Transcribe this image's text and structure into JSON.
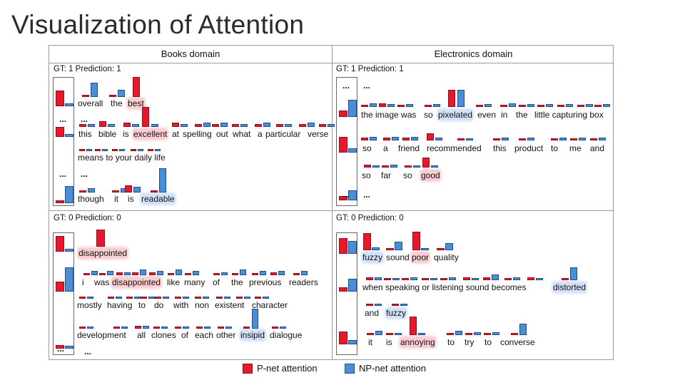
{
  "title": "Visualization of Attention",
  "panels": {
    "books_header": "Books domain",
    "electronics_header": "Electronics domain",
    "books_pos_gt": "GT: 1 Prediction: 1",
    "electronics_pos_gt": "GT: 1 Prediction: 1",
    "books_neg_gt": "GT: 0 Prediction: 0",
    "electronics_neg_gt": "GT: 0 Prediction: 0"
  },
  "ellipsis": "...",
  "words": {
    "bp": [
      "overall",
      "the",
      "best",
      "this",
      "bible",
      "is",
      "excellent",
      "at",
      "spelling",
      "out",
      "what",
      "a",
      "particular",
      "verse",
      "means to your daily life",
      "though",
      "it",
      "is",
      "readable"
    ],
    "ep": [
      "the image was",
      "so",
      "pixelated",
      "even",
      "in",
      "the",
      "little capturing box",
      "so",
      "a",
      "friend",
      "recommended",
      "this",
      "product",
      "to",
      "me",
      "and",
      "so",
      "far",
      "so",
      "good"
    ],
    "bn": [
      "disappointed",
      "i",
      "was",
      "disappointed",
      "like",
      "many",
      "of",
      "the",
      "previous",
      "readers",
      "mostly",
      "having",
      "to",
      "do",
      "with",
      "non",
      "existent",
      "character",
      "development",
      "all",
      "clones",
      "of",
      "each",
      "other",
      "insipid",
      "dialogue"
    ],
    "en": [
      "fuzzy",
      "sound",
      "poor",
      "quality",
      "when speaking or listening sound becomes",
      "distorted",
      "and",
      "fuzzy",
      "it",
      "is",
      "annoying",
      "to",
      "try",
      "to",
      "converse"
    ]
  },
  "legend": {
    "p_net": "P-net attention",
    "np_net": "NP-net attention",
    "p_color": "#e8182c",
    "np_color": "#4a8fd6"
  }
}
